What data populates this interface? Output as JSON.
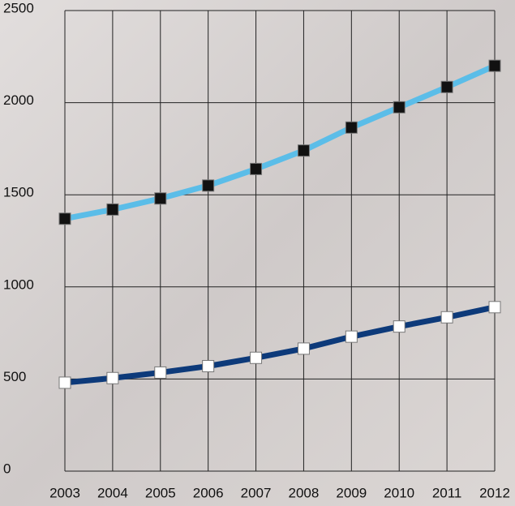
{
  "chart_data": {
    "type": "line",
    "categories": [
      "2003",
      "2004",
      "2005",
      "2006",
      "2007",
      "2008",
      "2009",
      "2010",
      "2011",
      "2012"
    ],
    "series": [
      {
        "color": "#5bbde8",
        "marker_color": "#111111",
        "values": [
          1370,
          1420,
          1480,
          1550,
          1640,
          1740,
          1865,
          1975,
          2085,
          2200
        ]
      },
      {
        "color": "#0d3a7a",
        "marker_color": "#ffffff",
        "values": [
          480,
          505,
          535,
          570,
          615,
          665,
          730,
          785,
          835,
          890
        ]
      }
    ],
    "ylim": [
      0,
      2500
    ],
    "yticks": [
      0,
      500,
      1000,
      1500,
      2000,
      2500
    ],
    "grid": true
  }
}
